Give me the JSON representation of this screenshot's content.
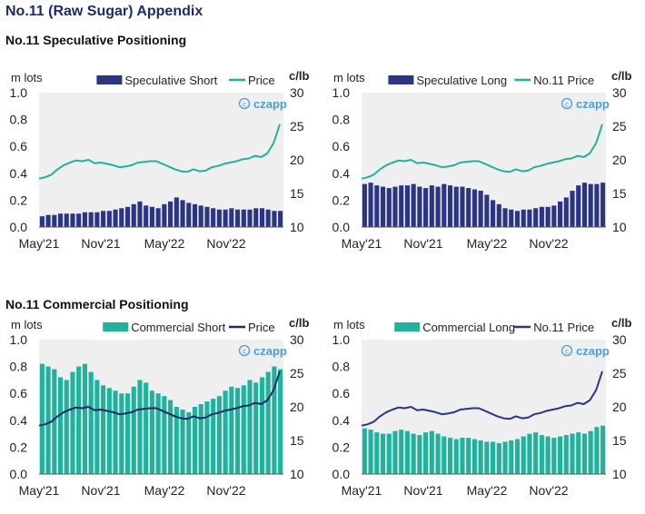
{
  "page": {
    "title": "No.11 (Raw Sugar) Appendix",
    "section_speculative": "No.11 Speculative Positioning",
    "section_commercial": "No.11 Commercial Positioning"
  },
  "colors": {
    "navy": "#2b3585",
    "teal": "#1fb39e",
    "plot_bg": "#efefef",
    "title": "#1c2b6b",
    "watermark": "#4a9fd8"
  },
  "watermark": "czapp",
  "chart_data": [
    {
      "type": "bar+line",
      "left_axis_unit": "m lots",
      "right_axis_unit": "c/lb",
      "ylim_left": [
        0,
        1.0
      ],
      "yticks_left": [
        "0.0",
        "0.2",
        "0.4",
        "0.6",
        "0.8",
        "1.0"
      ],
      "ylim_right": [
        10,
        30
      ],
      "yticks_right": [
        "10",
        "15",
        "20",
        "25",
        "30"
      ],
      "x_tick_labels": [
        "May'21",
        "Nov'21",
        "May'22",
        "Nov'22"
      ],
      "series": [
        {
          "name": "Speculative Short",
          "kind": "bar",
          "color": "#2b3585",
          "values": [
            0.08,
            0.09,
            0.09,
            0.1,
            0.1,
            0.1,
            0.1,
            0.11,
            0.11,
            0.11,
            0.12,
            0.12,
            0.13,
            0.14,
            0.15,
            0.17,
            0.19,
            0.16,
            0.15,
            0.14,
            0.17,
            0.19,
            0.22,
            0.2,
            0.18,
            0.17,
            0.16,
            0.15,
            0.14,
            0.13,
            0.13,
            0.14,
            0.13,
            0.13,
            0.13,
            0.14,
            0.14,
            0.13,
            0.12,
            0.12
          ]
        },
        {
          "name": "Price",
          "kind": "line",
          "axis": "right",
          "color": "#1fb39e",
          "values": [
            17.2,
            17.4,
            17.8,
            18.6,
            19.2,
            19.6,
            19.9,
            19.8,
            20.0,
            19.5,
            19.6,
            19.4,
            19.2,
            18.9,
            19.0,
            19.2,
            19.6,
            19.7,
            19.8,
            19.8,
            19.4,
            19.0,
            18.6,
            18.3,
            18.2,
            18.6,
            18.3,
            18.4,
            18.9,
            19.1,
            19.4,
            19.6,
            19.8,
            20.1,
            20.2,
            20.6,
            20.4,
            21.0,
            22.5,
            25.3
          ]
        }
      ]
    },
    {
      "type": "bar+line",
      "left_axis_unit": "m lots",
      "right_axis_unit": "c/lb",
      "ylim_left": [
        0,
        1.0
      ],
      "yticks_left": [
        "0.0",
        "0.2",
        "0.4",
        "0.6",
        "0.8",
        "1.0"
      ],
      "ylim_right": [
        10,
        30
      ],
      "yticks_right": [
        "10",
        "15",
        "20",
        "25",
        "30"
      ],
      "x_tick_labels": [
        "May'21",
        "Nov'21",
        "May'22",
        "Nov'22"
      ],
      "series": [
        {
          "name": "Speculative Long",
          "kind": "bar",
          "color": "#2b3585",
          "values": [
            0.32,
            0.33,
            0.31,
            0.3,
            0.29,
            0.3,
            0.31,
            0.31,
            0.32,
            0.3,
            0.29,
            0.31,
            0.3,
            0.32,
            0.31,
            0.3,
            0.3,
            0.29,
            0.28,
            0.27,
            0.24,
            0.2,
            0.17,
            0.14,
            0.13,
            0.12,
            0.13,
            0.13,
            0.14,
            0.15,
            0.15,
            0.16,
            0.19,
            0.22,
            0.27,
            0.31,
            0.33,
            0.32,
            0.32,
            0.33
          ]
        },
        {
          "name": "No.11 Price",
          "kind": "line",
          "axis": "right",
          "color": "#1fb39e",
          "values": [
            17.2,
            17.4,
            17.8,
            18.6,
            19.2,
            19.6,
            19.9,
            19.8,
            20.0,
            19.5,
            19.6,
            19.4,
            19.2,
            18.9,
            19.0,
            19.2,
            19.6,
            19.7,
            19.8,
            19.8,
            19.4,
            19.0,
            18.6,
            18.3,
            18.2,
            18.6,
            18.3,
            18.4,
            18.9,
            19.1,
            19.4,
            19.6,
            19.8,
            20.1,
            20.2,
            20.6,
            20.4,
            21.0,
            22.5,
            25.3
          ]
        }
      ]
    },
    {
      "type": "bar+line",
      "left_axis_unit": "m lots",
      "right_axis_unit": "c/lb",
      "ylim_left": [
        0,
        1.0
      ],
      "yticks_left": [
        "0.0",
        "0.2",
        "0.4",
        "0.6",
        "0.8",
        "1.0"
      ],
      "ylim_right": [
        10,
        30
      ],
      "yticks_right": [
        "10",
        "15",
        "20",
        "25",
        "30"
      ],
      "x_tick_labels": [
        "May'21",
        "Nov'21",
        "May'22",
        "Nov'22"
      ],
      "series": [
        {
          "name": "Commercial Short",
          "kind": "bar",
          "color": "#1fb39e",
          "values": [
            0.82,
            0.8,
            0.78,
            0.72,
            0.7,
            0.76,
            0.8,
            0.82,
            0.76,
            0.7,
            0.66,
            0.64,
            0.62,
            0.6,
            0.6,
            0.65,
            0.7,
            0.68,
            0.62,
            0.6,
            0.58,
            0.55,
            0.5,
            0.48,
            0.46,
            0.5,
            0.52,
            0.54,
            0.56,
            0.58,
            0.62,
            0.65,
            0.64,
            0.66,
            0.7,
            0.68,
            0.72,
            0.76,
            0.8,
            0.78
          ]
        },
        {
          "name": "Price",
          "kind": "line",
          "axis": "right",
          "color": "#1c2b6b",
          "values": [
            17.2,
            17.4,
            17.8,
            18.6,
            19.2,
            19.6,
            19.9,
            19.8,
            20.0,
            19.5,
            19.6,
            19.4,
            19.2,
            18.9,
            19.0,
            19.2,
            19.6,
            19.7,
            19.8,
            19.8,
            19.4,
            19.0,
            18.6,
            18.3,
            18.2,
            18.6,
            18.3,
            18.4,
            18.9,
            19.1,
            19.4,
            19.6,
            19.8,
            20.1,
            20.2,
            20.6,
            20.4,
            21.0,
            22.5,
            25.3
          ]
        }
      ]
    },
    {
      "type": "bar+line",
      "left_axis_unit": "m lots",
      "right_axis_unit": "c/lb",
      "ylim_left": [
        0,
        1.0
      ],
      "yticks_left": [
        "0.0",
        "0.2",
        "0.4",
        "0.6",
        "0.8",
        "1.0"
      ],
      "ylim_right": [
        10,
        30
      ],
      "yticks_right": [
        "10",
        "15",
        "20",
        "25",
        "30"
      ],
      "x_tick_labels": [
        "May'21",
        "Nov'21",
        "May'22",
        "Nov'22"
      ],
      "series": [
        {
          "name": "Commercial Long",
          "kind": "bar",
          "color": "#1fb39e",
          "values": [
            0.34,
            0.33,
            0.31,
            0.3,
            0.3,
            0.32,
            0.33,
            0.32,
            0.3,
            0.29,
            0.31,
            0.32,
            0.3,
            0.28,
            0.27,
            0.26,
            0.27,
            0.27,
            0.26,
            0.25,
            0.24,
            0.24,
            0.23,
            0.24,
            0.25,
            0.26,
            0.28,
            0.3,
            0.31,
            0.29,
            0.28,
            0.27,
            0.28,
            0.29,
            0.3,
            0.31,
            0.3,
            0.32,
            0.35,
            0.36
          ]
        },
        {
          "name": "No.11 Price",
          "kind": "line",
          "axis": "right",
          "color": "#2b3585",
          "values": [
            17.2,
            17.4,
            17.8,
            18.6,
            19.2,
            19.6,
            19.9,
            19.8,
            20.0,
            19.5,
            19.6,
            19.4,
            19.2,
            18.9,
            19.0,
            19.2,
            19.6,
            19.7,
            19.8,
            19.8,
            19.4,
            19.0,
            18.6,
            18.3,
            18.2,
            18.6,
            18.3,
            18.4,
            18.9,
            19.1,
            19.4,
            19.6,
            19.8,
            20.1,
            20.2,
            20.6,
            20.4,
            21.0,
            22.5,
            25.3
          ]
        }
      ]
    }
  ]
}
